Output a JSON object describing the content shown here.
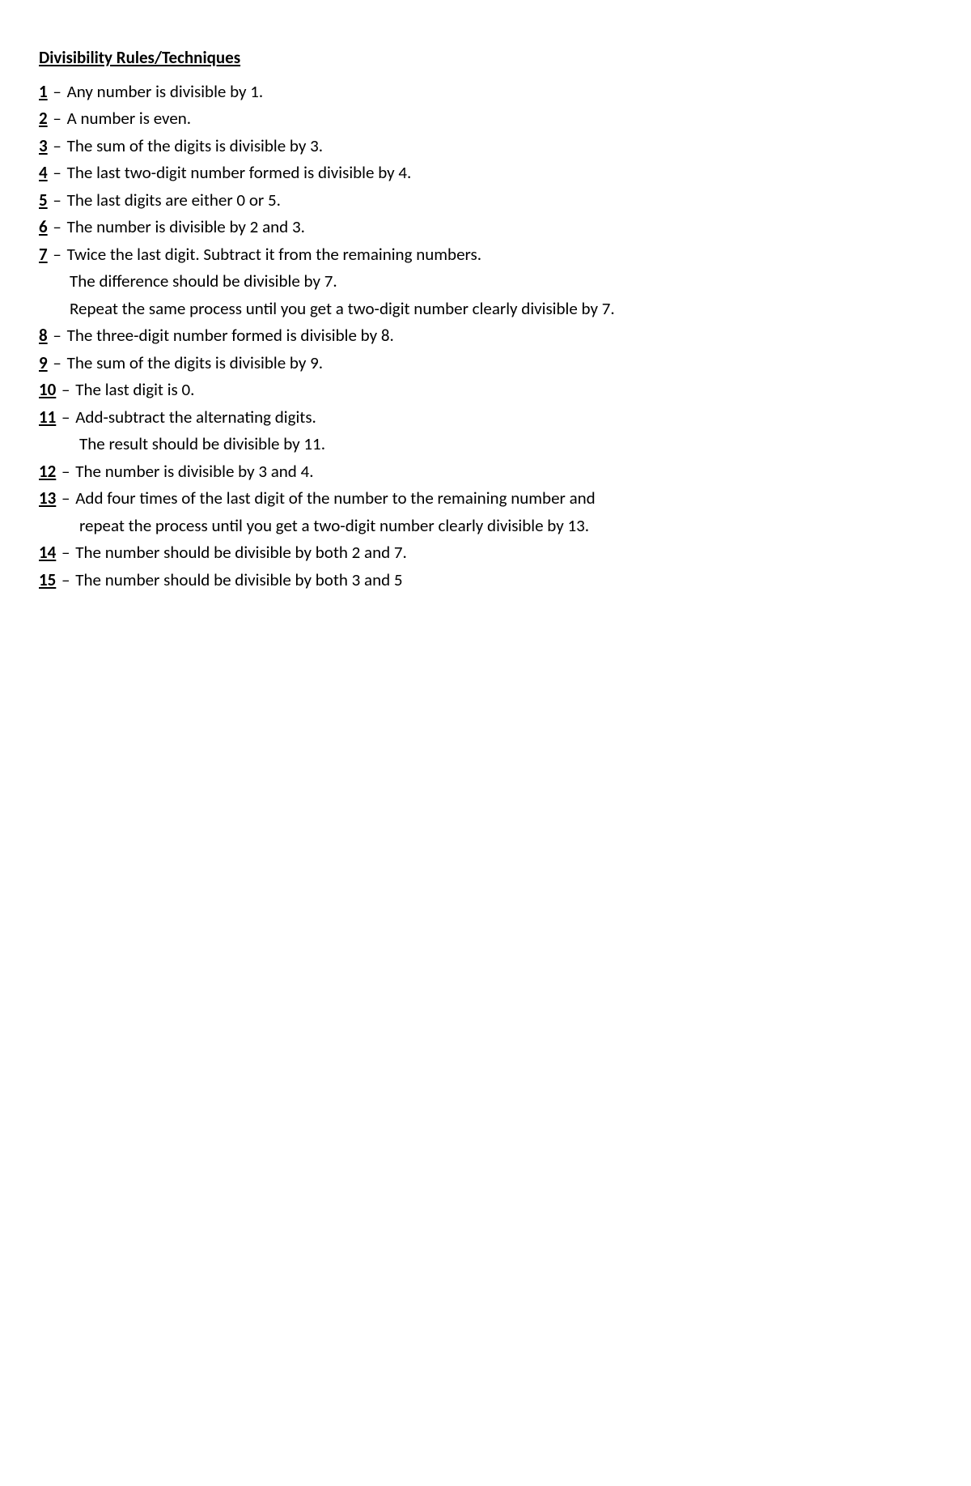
{
  "document": {
    "title": "Divisibility Rules/Techniques",
    "separator": " – ",
    "rules": {
      "r1": {
        "num": "1",
        "text": "Any number is divisible by 1."
      },
      "r2": {
        "num": "2",
        "text": "A number is even."
      },
      "r3": {
        "num": "3",
        "text": "The sum of the digits is divisible by 3."
      },
      "r4": {
        "num": "4",
        "text": "The last two-digit number formed is divisible by 4."
      },
      "r5": {
        "num": "5",
        "text": "The last digits are either 0 or 5."
      },
      "r6": {
        "num": "6",
        "text": "The number is divisible by 2 and 3."
      },
      "r7": {
        "num": "7",
        "text": "Twice the last digit. Subtract it from the remaining numbers.",
        "cont1": "The difference should be divisible by 7.",
        "cont2": "Repeat the same process until you get a two-digit number clearly divisible by 7."
      },
      "r8": {
        "num": "8",
        "text": "The three-digit number formed is divisible by 8."
      },
      "r9": {
        "num": "9",
        "text": "The sum of the digits is divisible by   9."
      },
      "r10": {
        "num": "10",
        "text": "The last digit is 0."
      },
      "r11": {
        "num": "11",
        "text": "Add-subtract the alternating digits.",
        "cont1": "The result should be divisible by 11."
      },
      "r12": {
        "num": "12",
        "text": "The number is divisible by 3 and 4."
      },
      "r13": {
        "num": "13",
        "text": "Add four times of the last digit of the number to the remaining number and",
        "cont1": "repeat the process until you get a two-digit number clearly divisible by 13."
      },
      "r14": {
        "num": "14",
        "text": "The number should be divisible by both 2 and 7."
      },
      "r15": {
        "num": "15",
        "text": "The number should be divisible by both 3 and 5"
      }
    },
    "colors": {
      "text": "#000000",
      "background": "#ffffff"
    },
    "typography": {
      "font_family": "Calibri",
      "font_size_pt": 16,
      "title_weight": 700,
      "number_weight": 700
    }
  }
}
